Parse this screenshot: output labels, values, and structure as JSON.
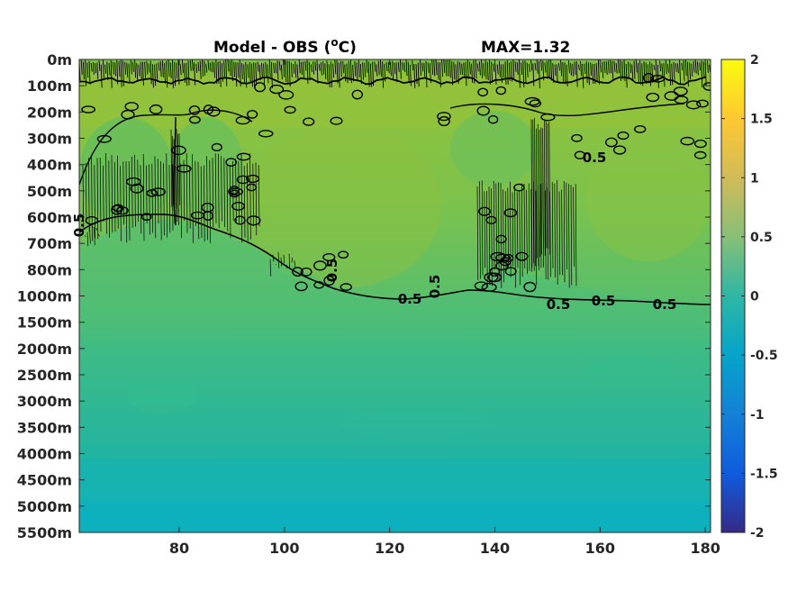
{
  "chart_data": {
    "type": "heatmap",
    "title": "Model - OBS (",
    "title_superscript": "o",
    "title_suffix": "C)",
    "annotation": "MAX=1.32",
    "x_ticks": [
      80,
      100,
      120,
      140,
      160,
      180
    ],
    "x_range": [
      61,
      181
    ],
    "y_tick_labels": [
      "0m",
      "100m",
      "200m",
      "300m",
      "400m",
      "500m",
      "600m",
      "700m",
      "800m",
      "1000m",
      "1500m",
      "2000m",
      "2500m",
      "3000m",
      "3500m",
      "4000m",
      "4500m",
      "5000m",
      "5500m"
    ],
    "colorbar": {
      "ticks": [
        "2",
        "1.5",
        "1",
        "0.5",
        "0",
        "-0.5",
        "-1",
        "-1.5",
        "-2"
      ],
      "range": [
        -2,
        2
      ],
      "colormap": "parula"
    },
    "contour_labels": [
      "0.5",
      "0.5",
      "0.5",
      "0.5",
      "0.5",
      "0.5",
      "0.5",
      "0.5"
    ],
    "contour_level": 0.5,
    "grid": false,
    "colors": {
      "upper_band": "#8cc03a",
      "middle": "#4cbd7a",
      "deep": "#1fb4ae",
      "bottom": "#0db2be"
    }
  }
}
